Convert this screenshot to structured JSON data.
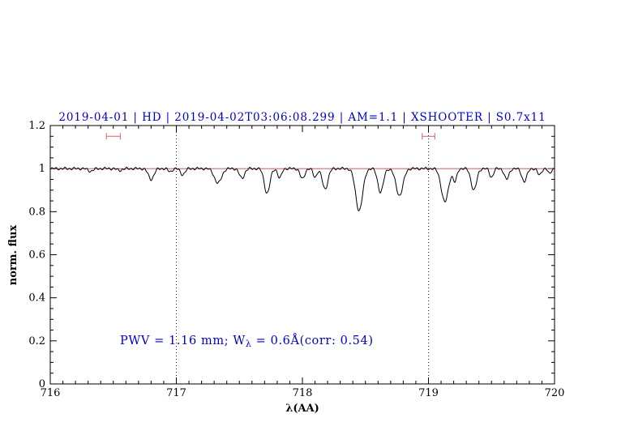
{
  "chart_data": {
    "type": "line",
    "title": "2019-04-01 | HD | 2019-04-02T03:06:08.299 | AM=1.1 | XSHOOTER | S0.7x11",
    "xlabel": "λ(AA)",
    "ylabel": "norm. flux",
    "xlim": [
      716,
      720
    ],
    "ylim": [
      0,
      1.2
    ],
    "x_major_ticks": [
      716,
      717,
      718,
      719,
      720
    ],
    "x_tick_labels": [
      "716",
      "717",
      "718",
      "719",
      "720"
    ],
    "x_minor_step": 0.1,
    "y_major_ticks": [
      0,
      0.2,
      0.4,
      0.6,
      0.8,
      1,
      1.2
    ],
    "y_tick_labels": [
      "0",
      "0.2",
      "0.4",
      "0.6",
      "0.8",
      "1",
      "1.2"
    ],
    "y_minor_step": 0.05,
    "continuum_level": 1.0,
    "dotted_vlines": [
      717,
      719
    ],
    "range_markers": [
      {
        "center": 716.5,
        "half_width": 0.055,
        "level": 1.15
      },
      {
        "center": 719.0,
        "half_width": 0.05,
        "level": 1.15
      }
    ],
    "absorption_lines": [
      {
        "center": 716.32,
        "depth": 0.012,
        "sigma": 0.02
      },
      {
        "center": 716.55,
        "depth": 0.008,
        "sigma": 0.02
      },
      {
        "center": 716.8,
        "depth": 0.05,
        "sigma": 0.022
      },
      {
        "center": 716.95,
        "depth": 0.015,
        "sigma": 0.015
      },
      {
        "center": 717.05,
        "depth": 0.028,
        "sigma": 0.018
      },
      {
        "center": 717.33,
        "depth": 0.068,
        "sigma": 0.028
      },
      {
        "center": 717.52,
        "depth": 0.045,
        "sigma": 0.02
      },
      {
        "center": 717.72,
        "depth": 0.115,
        "sigma": 0.022
      },
      {
        "center": 717.82,
        "depth": 0.045,
        "sigma": 0.015
      },
      {
        "center": 718.0,
        "depth": 0.048,
        "sigma": 0.018
      },
      {
        "center": 718.1,
        "depth": 0.04,
        "sigma": 0.015
      },
      {
        "center": 718.18,
        "depth": 0.095,
        "sigma": 0.022
      },
      {
        "center": 718.45,
        "depth": 0.195,
        "sigma": 0.028
      },
      {
        "center": 718.62,
        "depth": 0.11,
        "sigma": 0.022
      },
      {
        "center": 718.77,
        "depth": 0.125,
        "sigma": 0.028
      },
      {
        "center": 719.13,
        "depth": 0.155,
        "sigma": 0.028
      },
      {
        "center": 719.21,
        "depth": 0.06,
        "sigma": 0.015
      },
      {
        "center": 719.36,
        "depth": 0.1,
        "sigma": 0.022
      },
      {
        "center": 719.5,
        "depth": 0.04,
        "sigma": 0.015
      },
      {
        "center": 719.62,
        "depth": 0.05,
        "sigma": 0.018
      },
      {
        "center": 719.76,
        "depth": 0.06,
        "sigma": 0.02
      },
      {
        "center": 719.88,
        "depth": 0.03,
        "sigma": 0.015
      },
      {
        "center": 719.96,
        "depth": 0.025,
        "sigma": 0.012
      }
    ],
    "noise": {
      "amp1": 0.004,
      "freq1": 180,
      "amp2": 0.0025,
      "freq2": 77,
      "phase2": 2
    },
    "annotation": {
      "prefix": "PWV = 1.16 mm; W",
      "sub": "λ",
      "suffix": " = 0.6Å(corr: 0.54)"
    },
    "colors": {
      "title": "#0000cc",
      "annotation": "#0000cc",
      "continuum": "#cc4444",
      "marker": "#cc6666",
      "spectrum": "#000000",
      "frame": "#000000",
      "dotted": "#222222"
    }
  }
}
